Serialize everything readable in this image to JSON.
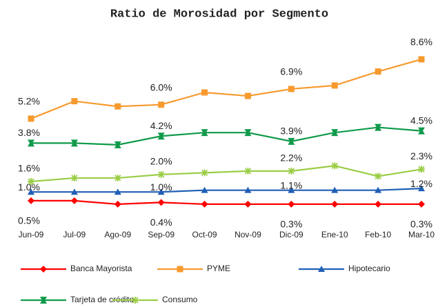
{
  "chart_data": {
    "type": "line",
    "title": "Ratio de Morosidad por Segmento",
    "categories": [
      "Jun-09",
      "Jul-09",
      "Ago-09",
      "Sep-09",
      "Oct-09",
      "Nov-09",
      "Dic-09",
      "Ene-10",
      "Feb-10",
      "Mar-10"
    ],
    "ylim": [
      0,
      9
    ],
    "series": [
      {
        "name": "Banca Mayorista",
        "color": "#ff0000",
        "marker": "diamond",
        "values": [
          0.5,
          0.5,
          0.3,
          0.4,
          0.3,
          0.3,
          0.3,
          0.3,
          0.3,
          0.3
        ],
        "value_labels": [
          "0.5%",
          null,
          null,
          "0.4%",
          null,
          null,
          "0.3%",
          null,
          null,
          "0.3%"
        ]
      },
      {
        "name": "PYME",
        "color": "#f79a2e",
        "marker": "square",
        "values": [
          5.2,
          6.2,
          5.9,
          6.0,
          6.7,
          6.5,
          6.9,
          7.1,
          7.9,
          8.6
        ],
        "value_labels": [
          "5.2%",
          null,
          null,
          "6.0%",
          null,
          null,
          "6.9%",
          null,
          null,
          "8.6%"
        ]
      },
      {
        "name": "Hipotecario",
        "color": "#1f5fb5",
        "marker": "triangle",
        "values": [
          1.0,
          1.0,
          1.0,
          1.0,
          1.1,
          1.1,
          1.1,
          1.1,
          1.1,
          1.2
        ],
        "value_labels": [
          "1.0%",
          null,
          null,
          "1.0%",
          null,
          null,
          "1.1%",
          null,
          null,
          "1.2%"
        ]
      },
      {
        "name": "Tarjeta de crédito",
        "color": "#0f9a4a",
        "marker": "hourglass",
        "values": [
          3.8,
          3.8,
          3.7,
          4.2,
          4.4,
          4.4,
          3.9,
          4.4,
          4.7,
          4.5
        ],
        "value_labels": [
          "3.8%",
          null,
          null,
          "4.2%",
          null,
          null,
          "3.9%",
          null,
          null,
          "4.5%"
        ]
      },
      {
        "name": "Consumo",
        "color": "#9acd45",
        "marker": "star",
        "values": [
          1.6,
          1.8,
          1.8,
          2.0,
          2.1,
          2.2,
          2.2,
          2.5,
          1.9,
          2.3
        ],
        "value_labels": [
          "1.6%",
          null,
          null,
          "2.0%",
          null,
          null,
          "2.2%",
          null,
          null,
          "2.3%"
        ]
      }
    ]
  }
}
